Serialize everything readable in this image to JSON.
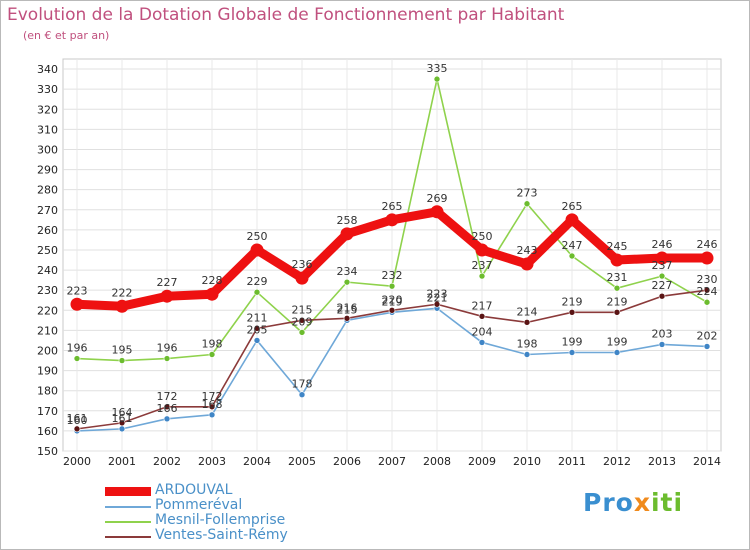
{
  "title": "Evolution de la Dotation Globale de Fonctionnement par Habitant",
  "subtitle": "(en € et par an)",
  "logo": {
    "part1": "Pro",
    "part2": "x",
    "part3": "iti"
  },
  "chart_data": {
    "type": "line",
    "title": "Evolution de la Dotation Globale de Fonctionnement par Habitant",
    "subtitle": "(en € et par an)",
    "xlabel": "",
    "ylabel": "",
    "ylim": [
      150,
      340
    ],
    "yticks": [
      150,
      160,
      170,
      180,
      190,
      200,
      210,
      220,
      230,
      240,
      250,
      260,
      270,
      280,
      290,
      300,
      310,
      320,
      330,
      340
    ],
    "grid": true,
    "legend_position": "bottom-left",
    "categories": [
      "2000",
      "2001",
      "2002",
      "2003",
      "2004",
      "2005",
      "2006",
      "2007",
      "2008",
      "2009",
      "2010",
      "2011",
      "2012",
      "2013",
      "2014"
    ],
    "series": [
      {
        "name": "Mesnil-Follemprise",
        "color": "#8fd24c",
        "marker": "#6cbc2e",
        "values": [
          196,
          195,
          196,
          198,
          229,
          209,
          234,
          232,
          335,
          237,
          273,
          247,
          231,
          237,
          224
        ]
      },
      {
        "name": "Pommeréval",
        "color": "#6fa8d8",
        "marker": "#3f85c6",
        "values": [
          160,
          161,
          166,
          168,
          205,
          178,
          215,
          219,
          221,
          204,
          198,
          199,
          199,
          203,
          202
        ]
      },
      {
        "name": "Ventes-Saint-Rémy",
        "color": "#8b3a3a",
        "marker": "#5a1414",
        "values": [
          161,
          164,
          172,
          172,
          211,
          215,
          216,
          220,
          223,
          217,
          214,
          219,
          219,
          227,
          230
        ]
      },
      {
        "name": "ARDOUVAL",
        "color": "#ee1111",
        "marker": "#ee1111",
        "values": [
          223,
          222,
          227,
          228,
          250,
          236,
          258,
          265,
          269,
          250,
          243,
          265,
          245,
          246,
          246
        ]
      }
    ],
    "data_labels": [
      {
        "series": "ARDOUVAL",
        "labels": [
          "223",
          "222",
          "227",
          "228",
          "250",
          "236",
          "258",
          "265",
          "269",
          "250",
          "243",
          "265",
          "245",
          "246",
          "246"
        ]
      },
      {
        "series": "Mesnil-Follemprise",
        "labels": [
          "196",
          "195",
          "196",
          "198",
          "229",
          "209",
          "234",
          "232",
          "335",
          "237",
          "273",
          "247",
          "231",
          "237",
          "224"
        ]
      },
      {
        "series": "Pommeréval",
        "labels": [
          "160",
          "161",
          "166",
          "168",
          "205",
          "178",
          "215",
          "219",
          "221",
          "204",
          "198",
          "199",
          "199",
          "203",
          "202"
        ]
      },
      {
        "series": "Ventes-Saint-Rémy",
        "labels": [
          "161",
          "164",
          "172",
          "172",
          "211",
          "215",
          "216",
          "220",
          "223",
          "217",
          "214",
          "219",
          "219",
          "227",
          "230"
        ]
      }
    ],
    "legend": [
      {
        "name": "ARDOUVAL",
        "color": "#ee1111"
      },
      {
        "name": "Pommeréval",
        "color": "#6fa8d8"
      },
      {
        "name": "Mesnil-Follemprise",
        "color": "#8fd24c"
      },
      {
        "name": "Ventes-Saint-Rémy",
        "color": "#8b3a3a"
      }
    ]
  }
}
